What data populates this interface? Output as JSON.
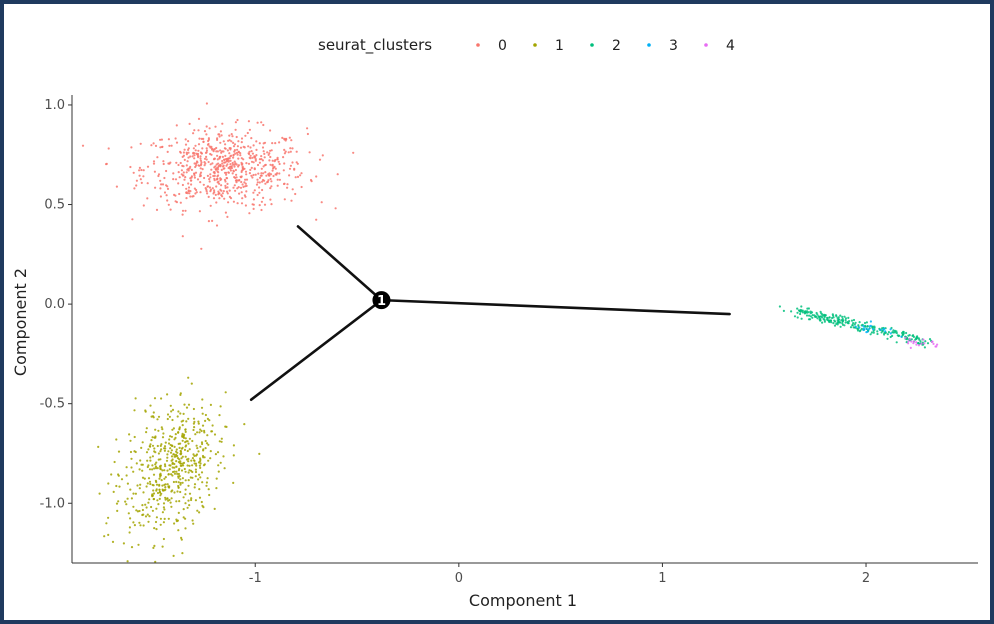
{
  "chart_data": {
    "type": "scatter",
    "title": "",
    "xlabel": "Component 1",
    "ylabel": "Component 2",
    "xlim": [
      -1.9,
      2.55
    ],
    "ylim": [
      -1.3,
      1.05
    ],
    "x_ticks": [
      -1,
      0,
      1,
      2
    ],
    "y_ticks": [
      -1.0,
      -0.5,
      0.0,
      0.5,
      1.0
    ],
    "x_tick_labels": [
      "-1",
      "0",
      "1",
      "2"
    ],
    "y_tick_labels": [
      "-1.0",
      "-0.5",
      "0.0",
      "0.5",
      "1.0"
    ],
    "grid": false,
    "legend": {
      "title": "seurat_clusters",
      "position": "top",
      "entries": [
        "0",
        "1",
        "2",
        "3",
        "4"
      ]
    },
    "series": [
      {
        "name": "0",
        "color": "#f8766d",
        "cluster_center": [
          -1.15,
          0.68
        ],
        "spread": [
          0.2,
          0.1
        ],
        "approx_points": 700
      },
      {
        "name": "1",
        "color": "#a3a500",
        "cluster_center": [
          -1.42,
          -0.82
        ],
        "spread": [
          0.1,
          0.13
        ],
        "approx_points": 550
      },
      {
        "name": "2",
        "color": "#00bf7d",
        "trend_line": {
          "x": [
            1.65,
            2.3
          ],
          "y": [
            -0.03,
            -0.19
          ]
        },
        "approx_points": 250
      },
      {
        "name": "3",
        "color": "#00b0f6",
        "trend_line": {
          "x": [
            1.95,
            2.15
          ],
          "y": [
            -0.1,
            -0.15
          ]
        },
        "approx_points": 20
      },
      {
        "name": "4",
        "color": "#e76bf3",
        "trend_line": {
          "x": [
            2.2,
            2.35
          ],
          "y": [
            -0.18,
            -0.21
          ]
        },
        "approx_points": 20
      }
    ],
    "trajectory": {
      "branch_point": {
        "x": -0.38,
        "y": 0.02,
        "label": "1"
      },
      "segments": [
        {
          "x": [
            -0.38,
            -0.79
          ],
          "y": [
            0.02,
            0.39
          ]
        },
        {
          "x": [
            -0.38,
            -1.02
          ],
          "y": [
            0.02,
            -0.48
          ]
        },
        {
          "x": [
            -0.38,
            1.33
          ],
          "y": [
            0.02,
            -0.05
          ]
        }
      ]
    }
  }
}
